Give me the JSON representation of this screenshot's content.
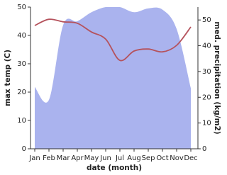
{
  "chart_data": {
    "type": "line-area",
    "x_label": "date (month)",
    "y_label": "max temp (C)",
    "y2_label": "med. precipitation (kg/m2)",
    "categories": [
      "Jan",
      "Feb",
      "Mar",
      "Apr",
      "May",
      "Jun",
      "Jul",
      "Aug",
      "Sep",
      "Oct",
      "Nov",
      "Dec"
    ],
    "series": [
      {
        "name": "max temp",
        "color": "#b5525c",
        "kind": "line",
        "values": [
          43.5,
          45.7,
          44.8,
          44.3,
          41.2,
          38.7,
          31.2,
          34.5,
          35.2,
          34.2,
          36.5,
          43
        ]
      },
      {
        "name": "precipitation",
        "color": "#aab3ee",
        "kind": "area",
        "axis": "y2",
        "values": [
          24,
          19,
          48,
          49.5,
          53,
          55,
          55,
          53,
          54.5,
          54,
          46.5,
          23.5
        ]
      }
    ],
    "ylim": [
      0,
      50
    ],
    "yticks": [
      0,
      10,
      20,
      30,
      40,
      50
    ],
    "y2lim": [
      0,
      55
    ],
    "y2ticks": [
      0,
      10,
      20,
      30,
      40,
      50
    ]
  }
}
